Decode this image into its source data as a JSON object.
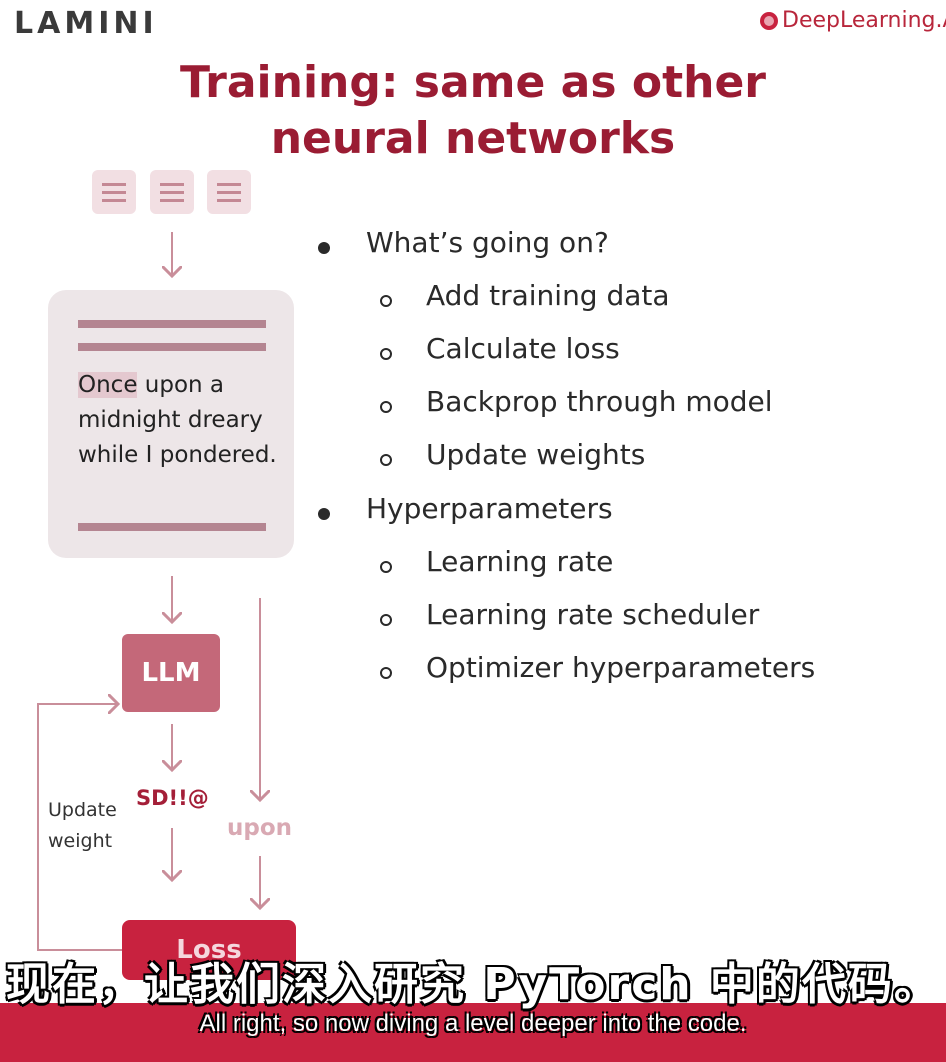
{
  "brand": {
    "left_logo": "LAMINI",
    "right_logo": "DeepLearning.AI"
  },
  "slide": {
    "title_line1": "Training: same as other",
    "title_line2": "neural networks",
    "diagram": {
      "text_first": "Once",
      "text_rest": " upon a midnight dreary while I pondered.",
      "model_label": "LLM",
      "prediction": "SD!!@",
      "target": "upon",
      "update_label_line1": "Update",
      "update_label_line2": "weight",
      "loss_label": "Loss"
    },
    "bullets": [
      {
        "label": "What’s going on?",
        "subs": [
          "Add training data",
          "Calculate loss",
          "Backprop through model",
          "Update weights"
        ]
      },
      {
        "label": "Hyperparameters",
        "subs": [
          "Learning rate",
          "Learning rate scheduler",
          "Optimizer hyperparameters"
        ]
      }
    ]
  },
  "subtitles": {
    "chinese": "现在，让我们深入研究 PyTorch 中的代码。",
    "english": "All right, so now diving a level deeper into the code."
  },
  "colors": {
    "accent": "#c8223f",
    "title": "#9a1c33",
    "llm_box": "#c46879"
  }
}
